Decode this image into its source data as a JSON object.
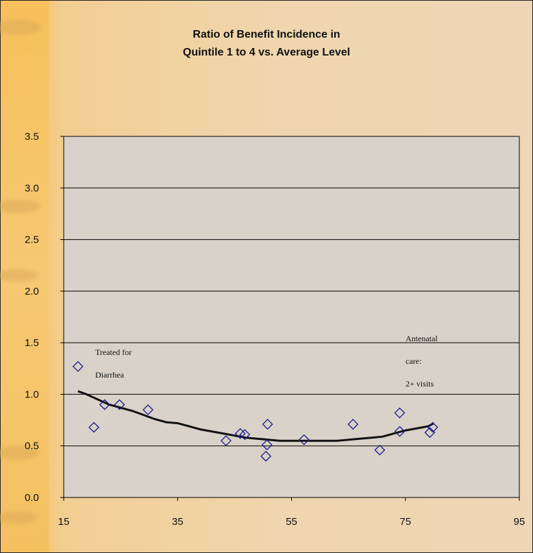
{
  "chart_data": {
    "type": "scatter",
    "title": "Ratio of Benefit Incidence in",
    "subtitle": "Quintile 1 to 4 vs. Average Level",
    "xlim": [
      15,
      95
    ],
    "ylim": [
      0.0,
      3.5
    ],
    "x_ticks": [
      "15",
      "35",
      "55",
      "75",
      "95"
    ],
    "y_ticks": [
      "0.0",
      "0.5",
      "1.0",
      "1.5",
      "2.0",
      "2.5",
      "3.0",
      "3.5"
    ],
    "grid": "horizontal",
    "points": [
      {
        "x": 17.5,
        "y": 1.27
      },
      {
        "x": 20.3,
        "y": 0.68
      },
      {
        "x": 22.2,
        "y": 0.9
      },
      {
        "x": 24.8,
        "y": 0.9
      },
      {
        "x": 29.8,
        "y": 0.85
      },
      {
        "x": 43.5,
        "y": 0.55
      },
      {
        "x": 46.0,
        "y": 0.62
      },
      {
        "x": 46.8,
        "y": 0.61
      },
      {
        "x": 50.5,
        "y": 0.4
      },
      {
        "x": 50.7,
        "y": 0.51
      },
      {
        "x": 50.8,
        "y": 0.71
      },
      {
        "x": 57.2,
        "y": 0.56
      },
      {
        "x": 65.8,
        "y": 0.71
      },
      {
        "x": 70.5,
        "y": 0.46
      },
      {
        "x": 74.0,
        "y": 0.82
      },
      {
        "x": 74.0,
        "y": 0.64
      },
      {
        "x": 79.3,
        "y": 0.63
      },
      {
        "x": 79.8,
        "y": 0.68
      }
    ],
    "trend": {
      "x": [
        17.5,
        19,
        21,
        23,
        25,
        27,
        29,
        31,
        33,
        35,
        37,
        39,
        41,
        43,
        45,
        47,
        49,
        51,
        53,
        55,
        57,
        59,
        61,
        63,
        65,
        67,
        69,
        71,
        73,
        75,
        77,
        79,
        80
      ],
      "y": [
        1.03,
        1.0,
        0.95,
        0.9,
        0.87,
        0.84,
        0.8,
        0.76,
        0.73,
        0.72,
        0.69,
        0.66,
        0.64,
        0.62,
        0.6,
        0.58,
        0.57,
        0.56,
        0.55,
        0.55,
        0.55,
        0.55,
        0.55,
        0.55,
        0.56,
        0.57,
        0.58,
        0.59,
        0.62,
        0.65,
        0.67,
        0.69,
        0.72
      ]
    },
    "annotations": [
      {
        "id": "diarrhea",
        "lines": [
          "Treated for",
          "Diarrhea"
        ]
      },
      {
        "id": "antenatal",
        "lines": [
          "Antenatal",
          "care:",
          "2+ visits"
        ]
      }
    ]
  }
}
